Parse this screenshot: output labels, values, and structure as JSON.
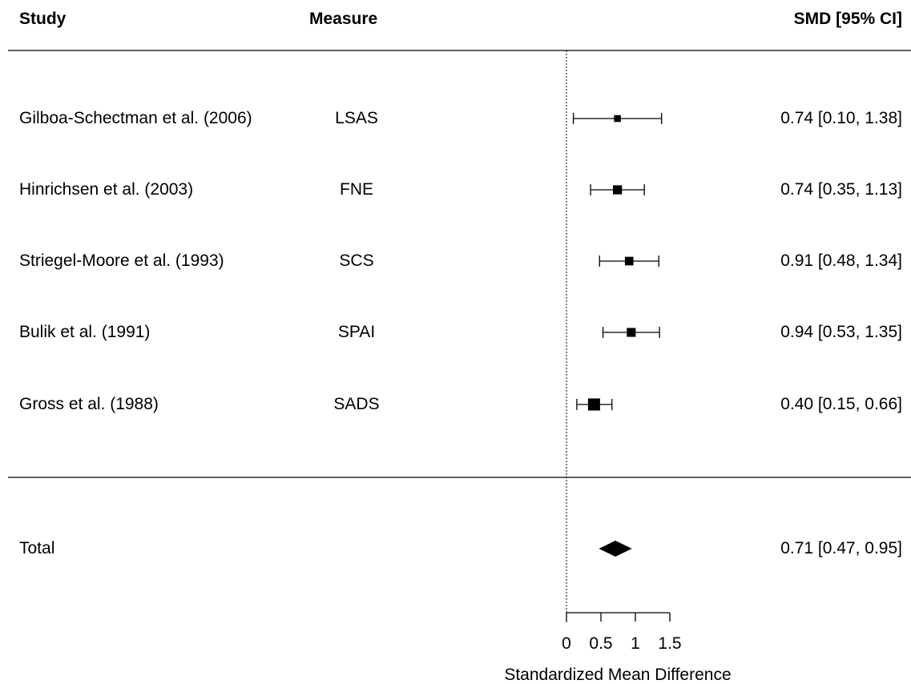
{
  "header": {
    "study": "Study",
    "measure": "Measure",
    "effect": "SMD [95% CI]"
  },
  "chart_data": {
    "type": "forest",
    "xlabel": "Standardized Mean Difference",
    "xticks": [
      "0",
      "0.5",
      "1",
      "1.5"
    ],
    "xtick_values": [
      0,
      0.5,
      1,
      1.5
    ],
    "xlim": [
      0,
      1.5
    ],
    "reference_line": 0,
    "studies": [
      {
        "study": "Gilboa-Schectman et al. (2006)",
        "measure": "LSAS",
        "estimate": 0.74,
        "lower": 0.1,
        "upper": 1.38,
        "ci_text": "0.74 [0.10, 1.38]",
        "weight": 1
      },
      {
        "study": "Hinrichsen et al. (2003)",
        "measure": "FNE",
        "estimate": 0.74,
        "lower": 0.35,
        "upper": 1.13,
        "ci_text": "0.74 [0.35, 1.13]",
        "weight": 2.6
      },
      {
        "study": "Striegel-Moore et al. (1993)",
        "measure": "SCS",
        "estimate": 0.91,
        "lower": 0.48,
        "upper": 1.34,
        "ci_text": "0.91 [0.48, 1.34]",
        "weight": 2.2
      },
      {
        "study": "Bulik et al. (1991)",
        "measure": "SPAI",
        "estimate": 0.94,
        "lower": 0.53,
        "upper": 1.35,
        "ci_text": "0.94 [0.53, 1.35]",
        "weight": 2.5
      },
      {
        "study": "Gross et al. (1988)",
        "measure": "SADS",
        "estimate": 0.4,
        "lower": 0.15,
        "upper": 0.66,
        "ci_text": "0.40 [0.15, 0.66]",
        "weight": 6
      }
    ],
    "total": {
      "label": "Total",
      "estimate": 0.71,
      "lower": 0.47,
      "upper": 0.95,
      "ci_text": "0.71 [0.47, 0.95]"
    }
  }
}
